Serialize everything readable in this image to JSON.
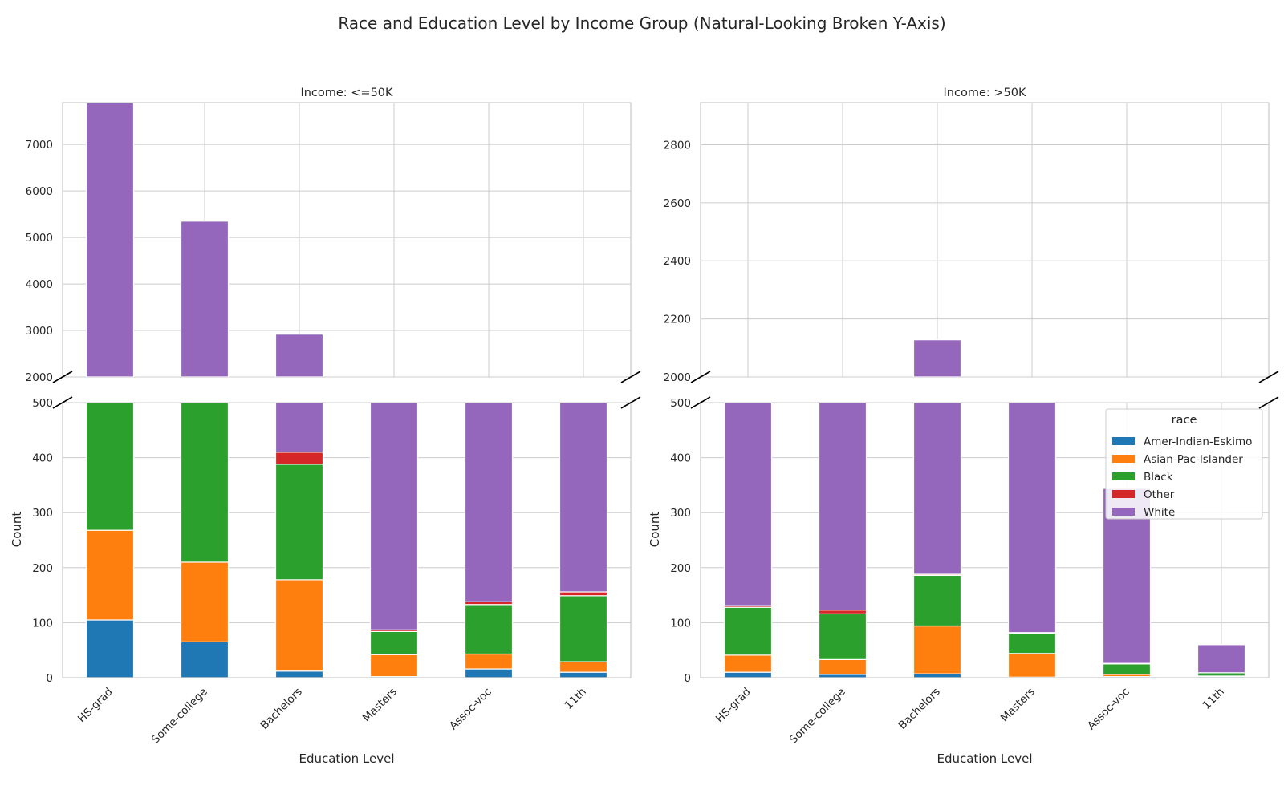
{
  "chart_data": {
    "type": "bar",
    "stacked": true,
    "title": "Race and Education Level by Income Group (Natural-Looking Broken Y-Axis)",
    "xlabel": "Education Level",
    "ylabel": "Count",
    "categories": [
      "HS-grad",
      "Some-college",
      "Bachelors",
      "Masters",
      "Assoc-voc",
      "11th"
    ],
    "legend": {
      "title": "race",
      "placement": "right panel, top-right",
      "entries": [
        "Amer-Indian-Eskimo",
        "Asian-Pac-Islander",
        "Black",
        "Other",
        "White"
      ]
    },
    "colors": {
      "Amer-Indian-Eskimo": "#1f77b4",
      "Asian-Pac-Islander": "#ff7f0e",
      "Black": "#2ca02c",
      "Other": "#d62728",
      "White": "#9467bd"
    },
    "grid": true,
    "broken_y_axis": true,
    "panels": [
      {
        "title": "Income: <=50K",
        "lower_ylim": [
          0,
          500
        ],
        "upper_ylim": [
          2000,
          7900
        ],
        "lower_yticks": [
          "0",
          "100",
          "200",
          "300",
          "400",
          "500"
        ],
        "upper_yticks": [
          "2000",
          "3000",
          "4000",
          "5000",
          "6000",
          "7000"
        ],
        "series": [
          {
            "name": "Amer-Indian-Eskimo",
            "values": [
              105,
              65,
              12,
              2,
              16,
              10
            ]
          },
          {
            "name": "Asian-Pac-Islander",
            "values": [
              163,
              145,
              166,
              40,
              27,
              19
            ]
          },
          {
            "name": "Black",
            "values": [
              1030,
              650,
              210,
              42,
              90,
              120
            ]
          },
          {
            "name": "Other",
            "values": [
              22,
              15,
              22,
              3,
              5,
              7
            ]
          },
          {
            "name": "White",
            "values": [
              6580,
              4475,
              2510,
              920,
              1050,
              1310
            ]
          }
        ]
      },
      {
        "title": "Income: >50K",
        "lower_ylim": [
          0,
          500
        ],
        "upper_ylim": [
          2000,
          2945
        ],
        "lower_yticks": [
          "0",
          "100",
          "200",
          "300",
          "400",
          "500"
        ],
        "upper_yticks": [
          "2000",
          "2200",
          "2400",
          "2600",
          "2800"
        ],
        "series": [
          {
            "name": "Amer-Indian-Eskimo",
            "values": [
              10,
              6,
              7,
              1,
              2,
              2
            ]
          },
          {
            "name": "Asian-Pac-Islander",
            "values": [
              31,
              27,
              87,
              43,
              4,
              1
            ]
          },
          {
            "name": "Black",
            "values": [
              87,
              83,
              92,
              37,
              19,
              6
            ]
          },
          {
            "name": "Other",
            "values": [
              3,
              7,
              2,
              1,
              1,
              0
            ]
          },
          {
            "name": "White",
            "values": [
              1500,
              1180,
              1940,
              880,
              318,
              51
            ]
          }
        ]
      }
    ]
  }
}
